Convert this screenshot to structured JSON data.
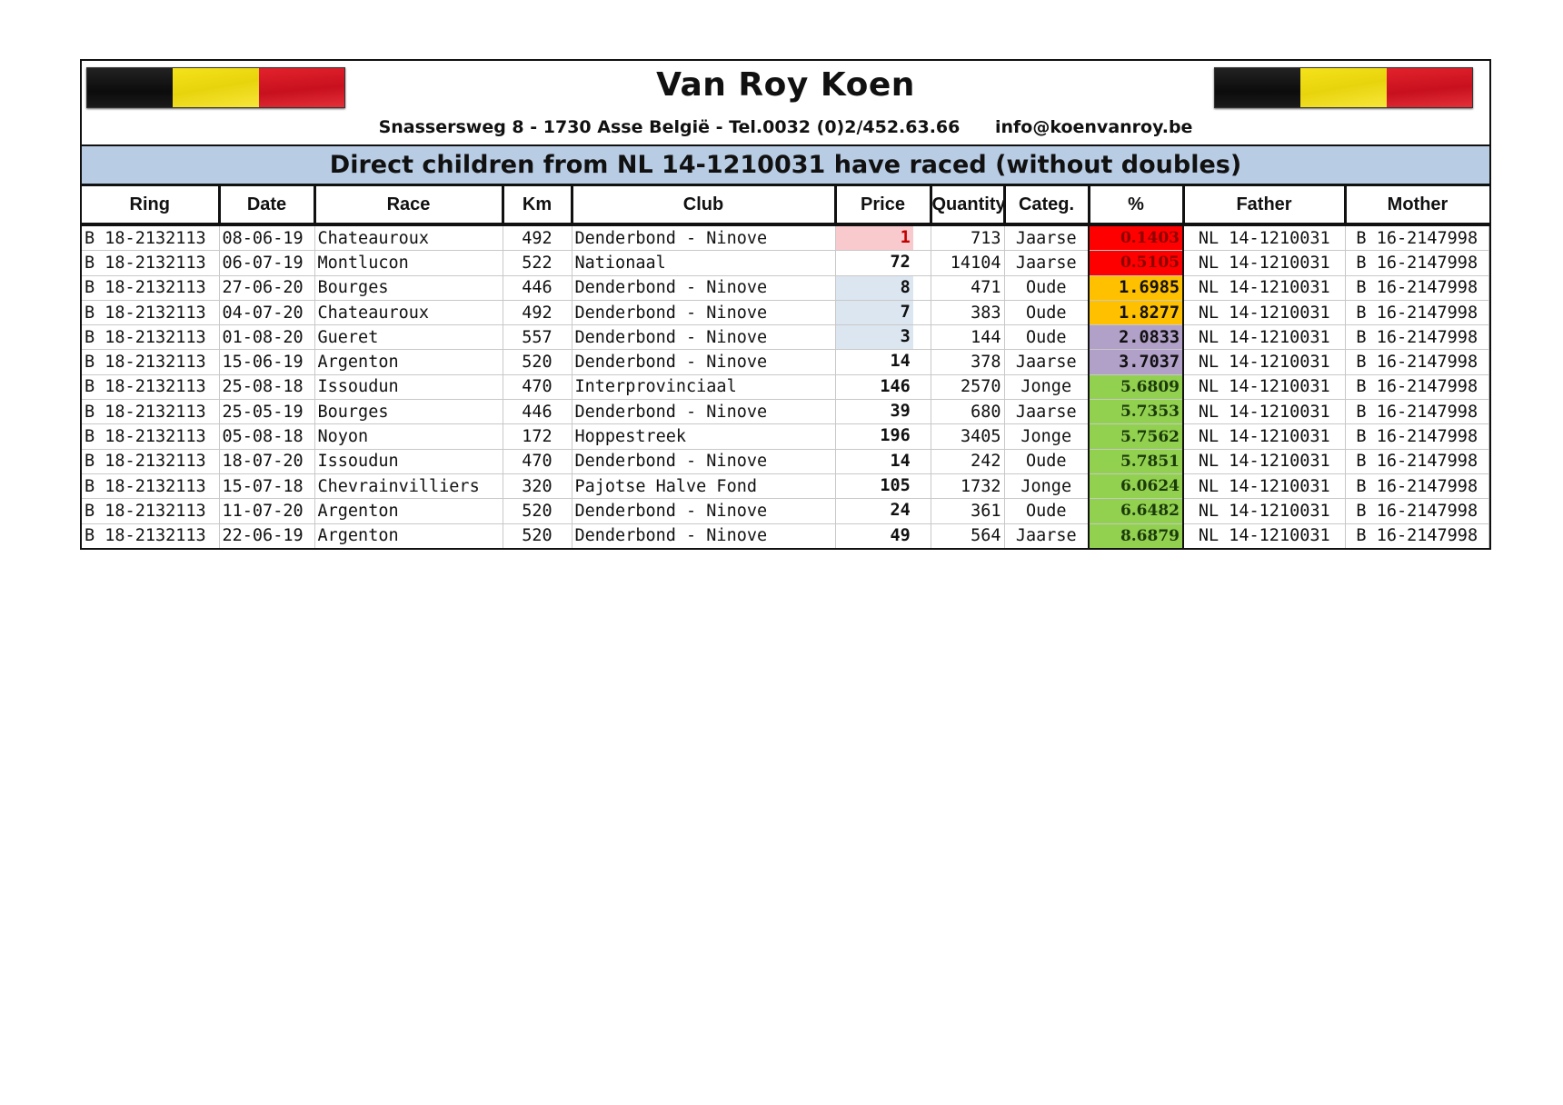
{
  "header": {
    "title": "Van Roy Koen",
    "address": "Snassersweg 8 - 1730 Asse België - Tel.0032 (0)2/452.63.66",
    "email": "info@koenvanroy.be",
    "flag_colors": [
      "#111111",
      "#f0dc14",
      "#d41a24"
    ]
  },
  "banner": "Direct children from NL 14-1210031 have raced (without doubles)",
  "columns": [
    "Ring",
    "Date",
    "Race",
    "Km",
    "Club",
    "Price",
    "Quantity",
    "Categ.",
    "%",
    "Father",
    "Mother"
  ],
  "colors": {
    "price_pink": "#f8c9cd",
    "price_blue": "#dce6f1",
    "pct_red": "#ff0000",
    "pct_orange": "#ffc000",
    "pct_purple": "#b1a0c7",
    "pct_green": "#92d050"
  },
  "rows": [
    {
      "ring": "B 18-2132113",
      "date": "08-06-19",
      "race": "Chateauroux",
      "km": "492",
      "club": "Denderbond - Ninove",
      "price": "1",
      "quantity": "713",
      "categ": "Jaarse",
      "pct": "0.1403",
      "father": "NL 14-1210031",
      "mother": "B 16-2147998",
      "price_color": "#f8c9cd",
      "price_text": "#c00000",
      "pct_color": "#ff0000",
      "pct_text": "#8b0000",
      "pct_serif": true
    },
    {
      "ring": "B 18-2132113",
      "date": "06-07-19",
      "race": "Montlucon",
      "km": "522",
      "club": "Nationaal",
      "price": "72",
      "quantity": "14104",
      "categ": "Jaarse",
      "pct": "0.5105",
      "father": "NL 14-1210031",
      "mother": "B 16-2147998",
      "price_color": "#ffffff",
      "price_text": "#111111",
      "pct_color": "#ff0000",
      "pct_text": "#8b0000",
      "pct_serif": true
    },
    {
      "ring": "B 18-2132113",
      "date": "27-06-20",
      "race": "Bourges",
      "km": "446",
      "club": "Denderbond - Ninove",
      "price": "8",
      "quantity": "471",
      "categ": "Oude",
      "pct": "1.6985",
      "father": "NL 14-1210031",
      "mother": "B 16-2147998",
      "price_color": "#dce6f1",
      "price_text": "#111111",
      "pct_color": "#ffc000",
      "pct_text": "#111111",
      "pct_serif": false
    },
    {
      "ring": "B 18-2132113",
      "date": "04-07-20",
      "race": "Chateauroux",
      "km": "492",
      "club": "Denderbond - Ninove",
      "price": "7",
      "quantity": "383",
      "categ": "Oude",
      "pct": "1.8277",
      "father": "NL 14-1210031",
      "mother": "B 16-2147998",
      "price_color": "#dce6f1",
      "price_text": "#111111",
      "pct_color": "#ffc000",
      "pct_text": "#111111",
      "pct_serif": false
    },
    {
      "ring": "B 18-2132113",
      "date": "01-08-20",
      "race": "Gueret",
      "km": "557",
      "club": "Denderbond - Ninove",
      "price": "3",
      "quantity": "144",
      "categ": "Oude",
      "pct": "2.0833",
      "father": "NL 14-1210031",
      "mother": "B 16-2147998",
      "price_color": "#dce6f1",
      "price_text": "#111111",
      "pct_color": "#b1a0c7",
      "pct_text": "#111111",
      "pct_serif": false
    },
    {
      "ring": "B 18-2132113",
      "date": "15-06-19",
      "race": "Argenton",
      "km": "520",
      "club": "Denderbond - Ninove",
      "price": "14",
      "quantity": "378",
      "categ": "Jaarse",
      "pct": "3.7037",
      "father": "NL 14-1210031",
      "mother": "B 16-2147998",
      "price_color": "#ffffff",
      "price_text": "#111111",
      "pct_color": "#b1a0c7",
      "pct_text": "#111111",
      "pct_serif": false
    },
    {
      "ring": "B 18-2132113",
      "date": "25-08-18",
      "race": "Issoudun",
      "km": "470",
      "club": "Interprovinciaal",
      "price": "146",
      "quantity": "2570",
      "categ": "Jonge",
      "pct": "5.6809",
      "father": "NL 14-1210031",
      "mother": "B 16-2147998",
      "price_color": "#ffffff",
      "price_text": "#111111",
      "pct_color": "#92d050",
      "pct_text": "#1a3a0a",
      "pct_serif": true
    },
    {
      "ring": "B 18-2132113",
      "date": "25-05-19",
      "race": "Bourges",
      "km": "446",
      "club": "Denderbond - Ninove",
      "price": "39",
      "quantity": "680",
      "categ": "Jaarse",
      "pct": "5.7353",
      "father": "NL 14-1210031",
      "mother": "B 16-2147998",
      "price_color": "#ffffff",
      "price_text": "#111111",
      "pct_color": "#92d050",
      "pct_text": "#1a3a0a",
      "pct_serif": true
    },
    {
      "ring": "B 18-2132113",
      "date": "05-08-18",
      "race": "Noyon",
      "km": "172",
      "club": "Hoppestreek",
      "price": "196",
      "quantity": "3405",
      "categ": "Jonge",
      "pct": "5.7562",
      "father": "NL 14-1210031",
      "mother": "B 16-2147998",
      "price_color": "#ffffff",
      "price_text": "#111111",
      "pct_color": "#92d050",
      "pct_text": "#1a3a0a",
      "pct_serif": true
    },
    {
      "ring": "B 18-2132113",
      "date": "18-07-20",
      "race": "Issoudun",
      "km": "470",
      "club": "Denderbond - Ninove",
      "price": "14",
      "quantity": "242",
      "categ": "Oude",
      "pct": "5.7851",
      "father": "NL 14-1210031",
      "mother": "B 16-2147998",
      "price_color": "#ffffff",
      "price_text": "#111111",
      "pct_color": "#92d050",
      "pct_text": "#1a3a0a",
      "pct_serif": true
    },
    {
      "ring": "B 18-2132113",
      "date": "15-07-18",
      "race": "Chevrainvilliers",
      "km": "320",
      "club": "Pajotse Halve Fond",
      "price": "105",
      "quantity": "1732",
      "categ": "Jonge",
      "pct": "6.0624",
      "father": "NL 14-1210031",
      "mother": "B 16-2147998",
      "price_color": "#ffffff",
      "price_text": "#111111",
      "pct_color": "#92d050",
      "pct_text": "#1a3a0a",
      "pct_serif": true
    },
    {
      "ring": "B 18-2132113",
      "date": "11-07-20",
      "race": "Argenton",
      "km": "520",
      "club": "Denderbond - Ninove",
      "price": "24",
      "quantity": "361",
      "categ": "Oude",
      "pct": "6.6482",
      "father": "NL 14-1210031",
      "mother": "B 16-2147998",
      "price_color": "#ffffff",
      "price_text": "#111111",
      "pct_color": "#92d050",
      "pct_text": "#1a3a0a",
      "pct_serif": true
    },
    {
      "ring": "B 18-2132113",
      "date": "22-06-19",
      "race": "Argenton",
      "km": "520",
      "club": "Denderbond - Ninove",
      "price": "49",
      "quantity": "564",
      "categ": "Jaarse",
      "pct": "8.6879",
      "father": "NL 14-1210031",
      "mother": "B 16-2147998",
      "price_color": "#ffffff",
      "price_text": "#111111",
      "pct_color": "#92d050",
      "pct_text": "#1a3a0a",
      "pct_serif": true
    }
  ]
}
